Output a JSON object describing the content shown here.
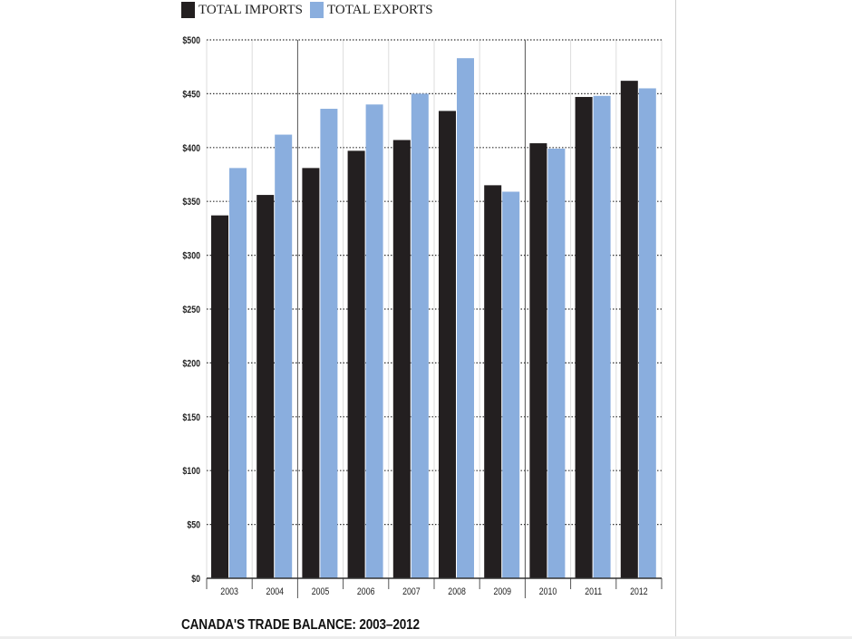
{
  "chart_data": {
    "type": "bar",
    "title": "CANADA'S TRADE BALANCE: 2003–2012",
    "categories": [
      "2003",
      "2004",
      "2005",
      "2006",
      "2007",
      "2008",
      "2009",
      "2010",
      "2011",
      "2012"
    ],
    "series": [
      {
        "name": "TOTAL IMPORTS",
        "color": "#231f20",
        "values": [
          337,
          356,
          381,
          397,
          407,
          434,
          365,
          404,
          447,
          462
        ]
      },
      {
        "name": "TOTAL EXPORTS",
        "color": "#8aaede",
        "values": [
          381,
          412,
          436,
          440,
          450,
          483,
          359,
          399,
          448,
          455
        ]
      }
    ],
    "ylim": [
      0,
      500
    ],
    "yticks": [
      0,
      50,
      100,
      150,
      200,
      250,
      300,
      350,
      400,
      450,
      500
    ],
    "ytick_labels": [
      "$0",
      "$50",
      "$100",
      "$150",
      "$200",
      "$250",
      "$300",
      "$350",
      "$400",
      "$450",
      "$500"
    ],
    "grid": "horizontal dotted",
    "legend": "top-left"
  }
}
